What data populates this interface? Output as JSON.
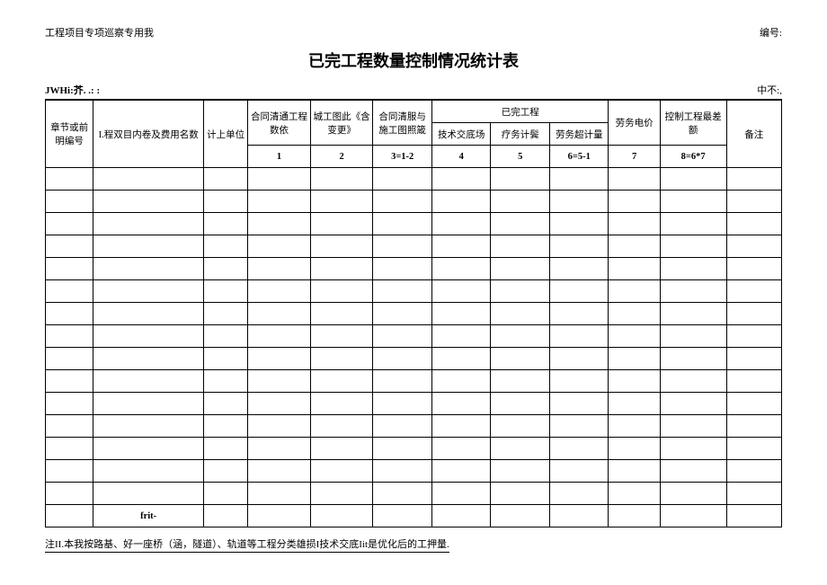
{
  "header": {
    "left": "工程项目专项巡察专用我",
    "right": "编号:"
  },
  "title": "已完工程数量控制情况统计表",
  "subhead": {
    "left": "JWHi:芥.  .:  :",
    "right": "中不:,"
  },
  "table": {
    "head": {
      "r1": {
        "c1": "章节或前明编号",
        "c2": "I.程双目内卷及费用名数",
        "c3": "计上单位",
        "c4": "合同清通工程数依",
        "c5": "城工图此《含变更》",
        "c6": "合同清服与施工图照箴",
        "g_done": "已完工程",
        "c7": "技术交底场",
        "c8": "疗务计鬓",
        "c9": "劳务超计量",
        "c10": "劳务电价",
        "c11": "控制工程最差额",
        "c12": "备注"
      },
      "r2": {
        "c4": "1",
        "c5": "2",
        "c6": "3=1-2",
        "c7": "4",
        "c8": "5",
        "c9": "6=5-1",
        "c10": "7",
        "c11": "8=6*7"
      }
    },
    "empty_rows": 15,
    "foot_row_c2": "frit-"
  },
  "footnote": "注II.本我按路基、好一座桥（涵，隧道）、轨道等工程分类雄损I技术交底Iit是优化后的工押量."
}
